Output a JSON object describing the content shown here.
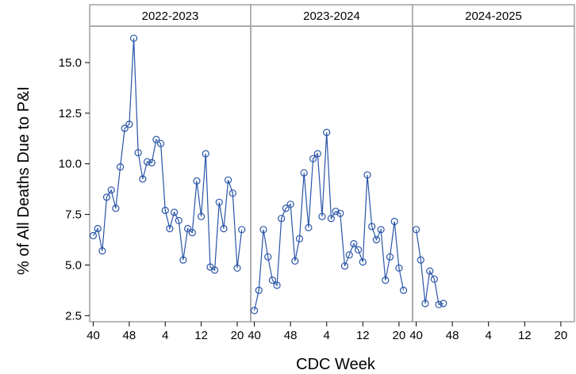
{
  "chart_data": {
    "type": "line",
    "xlabel": "CDC Week",
    "ylabel": "% of All Deaths Due to P&I",
    "ylim": [
      2.2,
      16.8
    ],
    "yticks": [
      2.5,
      5.0,
      7.5,
      10.0,
      12.5,
      15.0
    ],
    "ytick_labels": [
      "2.5",
      "5.0",
      "7.5",
      "10.0",
      "12.5",
      "15.0"
    ],
    "xticks": [
      40,
      48,
      4,
      12,
      20
    ],
    "xtick_labels": [
      "40",
      "48",
      "4",
      "12",
      "20"
    ],
    "x_note": "x values are CDC week numbers; the season runs from week 40 through week 52 and continues with weeks 1-22 of the following year",
    "line_color": "#2a55a8",
    "marker": "open-circle",
    "panels": [
      {
        "label": "2022-2023",
        "weeks": [
          40,
          41,
          42,
          43,
          44,
          45,
          46,
          47,
          48,
          49,
          50,
          51,
          52,
          1,
          2,
          3,
          4,
          5,
          6,
          7,
          8,
          9,
          10,
          11,
          12,
          13,
          14,
          15,
          16,
          17,
          18,
          19,
          20,
          21
        ],
        "values": [
          6.45,
          6.8,
          5.7,
          8.35,
          8.7,
          7.8,
          9.85,
          11.75,
          11.95,
          16.2,
          10.55,
          9.25,
          10.1,
          10.05,
          11.2,
          11.0,
          7.7,
          6.8,
          7.6,
          7.2,
          5.25,
          6.8,
          6.6,
          9.15,
          7.4,
          10.5,
          4.9,
          4.75,
          8.1,
          6.8,
          9.2,
          8.55,
          4.85,
          6.75
        ]
      },
      {
        "label": "2023-2024",
        "weeks": [
          40,
          41,
          42,
          43,
          44,
          45,
          46,
          47,
          48,
          49,
          50,
          51,
          52,
          1,
          2,
          3,
          4,
          5,
          6,
          7,
          8,
          9,
          10,
          11,
          12,
          13,
          14,
          15,
          16,
          17,
          18,
          19,
          20,
          21
        ],
        "values": [
          2.75,
          3.75,
          6.75,
          5.4,
          4.25,
          4.0,
          7.3,
          7.8,
          8.0,
          5.2,
          6.3,
          9.55,
          6.85,
          10.25,
          10.5,
          7.4,
          11.55,
          7.3,
          7.65,
          7.55,
          4.95,
          5.5,
          6.05,
          5.75,
          5.15,
          9.45,
          6.9,
          6.25,
          6.75,
          4.25,
          5.4,
          7.15,
          4.85,
          3.75
        ]
      },
      {
        "label": "2024-2025",
        "weeks": [
          40,
          41,
          42,
          43,
          44,
          45,
          46
        ],
        "values": [
          6.75,
          5.25,
          3.1,
          4.7,
          4.3,
          3.05,
          3.1
        ]
      }
    ]
  }
}
